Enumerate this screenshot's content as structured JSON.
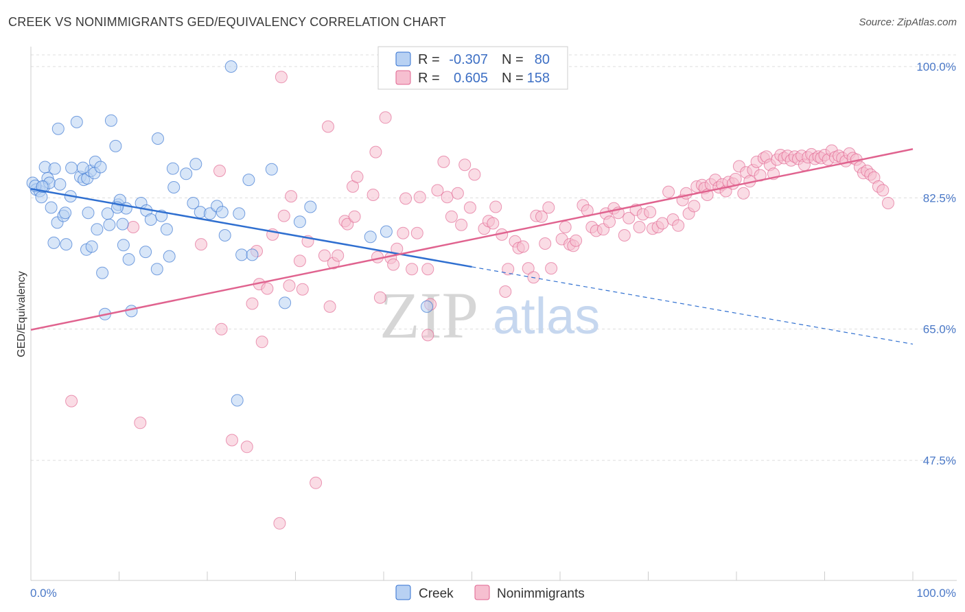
{
  "header": {
    "title": "CREEK VS NONIMMIGRANTS GED/EQUIVALENCY CORRELATION CHART",
    "source": "Source: ZipAtlas.com"
  },
  "watermark": {
    "zip": "ZIP",
    "atlas": "atlas"
  },
  "colors": {
    "creek": "#2f6fd0",
    "creek_fill": "#b8d1f3",
    "nonimm": "#e0638f",
    "nonimm_fill": "#f6bfd0",
    "grid": "#dddddd",
    "tick_label": "#4a78c7"
  },
  "legend": {
    "rows": [
      {
        "r_label": "R =",
        "r_value": "-0.307",
        "n_label": "N =",
        "n_value": "80"
      },
      {
        "r_label": "R =",
        "r_value": "0.605",
        "n_label": "N =",
        "n_value": "158"
      }
    ]
  },
  "bottom_legend": {
    "creek": "Creek",
    "nonimm": "Nonimmigrants"
  },
  "chart_data": {
    "type": "scatter",
    "title": "CREEK VS NONIMMIGRANTS GED/EQUIVALENCY CORRELATION CHART",
    "xlabel": "",
    "ylabel": "GED/Equivalency",
    "xlim": [
      0,
      100
    ],
    "ylim": [
      30,
      101.5
    ],
    "x_tick_labels": [
      "0.0%",
      "100.0%"
    ],
    "y_ticks": [
      47.5,
      65.0,
      82.5,
      100.0
    ],
    "y_tick_labels": [
      "47.5%",
      "65.0%",
      "82.5%",
      "100.0%"
    ],
    "grid": "horizontal dashed",
    "legend_position": "top-center",
    "series": [
      {
        "name": "Creek",
        "r": -0.307,
        "n": 80,
        "trend": {
          "x": [
            0,
            50
          ],
          "y": [
            83.7,
            73.3
          ],
          "dashed_extension": {
            "x": [
              50,
              100
            ],
            "y": [
              73.3,
              63.0
            ]
          }
        },
        "points": [
          [
            0.2,
            84.5
          ],
          [
            0.6,
            83.6
          ],
          [
            1.0,
            83.4
          ],
          [
            1.2,
            82.6
          ],
          [
            1.5,
            84.0
          ],
          [
            1.6,
            86.6
          ],
          [
            1.9,
            85.1
          ],
          [
            2.1,
            84.5
          ],
          [
            2.3,
            81.2
          ],
          [
            2.7,
            86.4
          ],
          [
            2.6,
            76.5
          ],
          [
            3.0,
            79.2
          ],
          [
            3.1,
            91.7
          ],
          [
            3.3,
            84.3
          ],
          [
            3.7,
            80.1
          ],
          [
            3.9,
            80.5
          ],
          [
            4.0,
            76.3
          ],
          [
            4.5,
            82.7
          ],
          [
            4.6,
            86.5
          ],
          [
            5.2,
            92.6
          ],
          [
            5.6,
            85.3
          ],
          [
            6.0,
            84.9
          ],
          [
            6.3,
            75.6
          ],
          [
            6.4,
            85.1
          ],
          [
            6.5,
            80.5
          ],
          [
            6.8,
            86.1
          ],
          [
            6.9,
            76.0
          ],
          [
            7.2,
            85.8
          ],
          [
            7.3,
            87.3
          ],
          [
            7.5,
            78.3
          ],
          [
            7.9,
            86.6
          ],
          [
            8.1,
            72.5
          ],
          [
            8.4,
            67.0
          ],
          [
            8.7,
            80.4
          ],
          [
            8.9,
            78.9
          ],
          [
            9.1,
            92.8
          ],
          [
            9.6,
            89.4
          ],
          [
            9.9,
            81.6
          ],
          [
            10.1,
            82.2
          ],
          [
            10.4,
            79.0
          ],
          [
            10.5,
            76.2
          ],
          [
            10.8,
            81.1
          ],
          [
            11.1,
            74.3
          ],
          [
            11.4,
            67.4
          ],
          [
            12.5,
            81.8
          ],
          [
            13.0,
            75.3
          ],
          [
            13.1,
            80.8
          ],
          [
            13.6,
            79.6
          ],
          [
            14.3,
            73.0
          ],
          [
            14.4,
            90.4
          ],
          [
            14.8,
            80.1
          ],
          [
            15.4,
            78.3
          ],
          [
            15.7,
            74.7
          ],
          [
            16.1,
            86.4
          ],
          [
            16.2,
            83.9
          ],
          [
            17.6,
            85.7
          ],
          [
            18.4,
            81.8
          ],
          [
            18.7,
            87.0
          ],
          [
            19.2,
            80.6
          ],
          [
            20.3,
            80.4
          ],
          [
            21.1,
            81.4
          ],
          [
            21.7,
            80.6
          ],
          [
            22.0,
            77.5
          ],
          [
            22.7,
            100.0
          ],
          [
            23.4,
            55.5
          ],
          [
            23.6,
            80.4
          ],
          [
            23.9,
            74.9
          ],
          [
            24.7,
            84.9
          ],
          [
            25.1,
            74.9
          ],
          [
            27.3,
            86.3
          ],
          [
            28.8,
            68.5
          ],
          [
            30.5,
            79.3
          ],
          [
            31.7,
            81.3
          ],
          [
            38.5,
            77.3
          ],
          [
            40.3,
            78.0
          ],
          [
            44.9,
            68.0
          ],
          [
            0.5,
            84.1
          ],
          [
            1.3,
            84.0
          ],
          [
            5.9,
            86.5
          ],
          [
            9.8,
            81.2
          ]
        ]
      },
      {
        "name": "Nonimmigrants",
        "r": 0.605,
        "n": 158,
        "trend": {
          "x": [
            0,
            100
          ],
          "y": [
            64.9,
            89.0
          ]
        },
        "points": [
          [
            4.6,
            55.4
          ],
          [
            11.6,
            78.6
          ],
          [
            12.4,
            52.5
          ],
          [
            19.3,
            76.3
          ],
          [
            21.4,
            86.1
          ],
          [
            21.6,
            65.0
          ],
          [
            22.8,
            50.2
          ],
          [
            24.5,
            49.3
          ],
          [
            25.1,
            68.4
          ],
          [
            25.6,
            75.4
          ],
          [
            25.9,
            71.0
          ],
          [
            26.2,
            63.3
          ],
          [
            26.8,
            70.4
          ],
          [
            27.4,
            77.6
          ],
          [
            28.2,
            39.1
          ],
          [
            28.4,
            98.6
          ],
          [
            28.7,
            80.1
          ],
          [
            29.3,
            70.8
          ],
          [
            29.5,
            82.7
          ],
          [
            30.5,
            74.1
          ],
          [
            30.8,
            70.3
          ],
          [
            31.4,
            76.7
          ],
          [
            32.3,
            44.5
          ],
          [
            33.3,
            74.8
          ],
          [
            33.7,
            92.0
          ],
          [
            33.9,
            68.0
          ],
          [
            34.3,
            73.8
          ],
          [
            34.8,
            74.8
          ],
          [
            35.6,
            79.4
          ],
          [
            35.9,
            79.0
          ],
          [
            36.5,
            84.0
          ],
          [
            36.7,
            80.0
          ],
          [
            37.0,
            85.3
          ],
          [
            38.8,
            82.9
          ],
          [
            39.1,
            88.6
          ],
          [
            39.3,
            74.6
          ],
          [
            39.6,
            69.2
          ],
          [
            40.2,
            93.2
          ],
          [
            40.8,
            74.5
          ],
          [
            41.1,
            73.6
          ],
          [
            41.5,
            75.7
          ],
          [
            42.2,
            77.8
          ],
          [
            42.5,
            82.4
          ],
          [
            43.2,
            73.0
          ],
          [
            43.8,
            77.8
          ],
          [
            44.1,
            82.6
          ],
          [
            45.0,
            73.0
          ],
          [
            45.0,
            64.2
          ],
          [
            45.3,
            68.3
          ],
          [
            46.1,
            83.5
          ],
          [
            46.8,
            87.3
          ],
          [
            47.2,
            82.6
          ],
          [
            47.7,
            80.0
          ],
          [
            48.4,
            83.1
          ],
          [
            48.8,
            78.9
          ],
          [
            49.2,
            86.9
          ],
          [
            49.8,
            81.2
          ],
          [
            50.3,
            85.6
          ],
          [
            51.4,
            78.4
          ],
          [
            51.9,
            79.4
          ],
          [
            52.4,
            79.1
          ],
          [
            52.7,
            81.3
          ],
          [
            53.4,
            77.6
          ],
          [
            53.8,
            70.0
          ],
          [
            54.1,
            73.0
          ],
          [
            54.9,
            76.7
          ],
          [
            55.3,
            75.8
          ],
          [
            55.8,
            76.0
          ],
          [
            56.4,
            73.1
          ],
          [
            57.0,
            71.9
          ],
          [
            57.3,
            80.1
          ],
          [
            57.9,
            80.0
          ],
          [
            58.3,
            76.4
          ],
          [
            58.7,
            81.2
          ],
          [
            59.0,
            73.1
          ],
          [
            60.2,
            77.0
          ],
          [
            60.6,
            78.6
          ],
          [
            61.1,
            76.3
          ],
          [
            61.5,
            76.1
          ],
          [
            61.8,
            76.8
          ],
          [
            62.6,
            81.5
          ],
          [
            63.1,
            80.8
          ],
          [
            63.6,
            78.6
          ],
          [
            64.1,
            78.1
          ],
          [
            64.9,
            78.3
          ],
          [
            65.2,
            80.4
          ],
          [
            65.6,
            79.3
          ],
          [
            66.1,
            81.1
          ],
          [
            66.6,
            80.5
          ],
          [
            67.3,
            77.5
          ],
          [
            67.8,
            79.8
          ],
          [
            68.6,
            80.9
          ],
          [
            69.0,
            78.6
          ],
          [
            69.4,
            80.3
          ],
          [
            70.2,
            80.6
          ],
          [
            70.5,
            78.4
          ],
          [
            71.1,
            78.6
          ],
          [
            71.6,
            79.1
          ],
          [
            72.3,
            83.3
          ],
          [
            72.8,
            79.6
          ],
          [
            73.4,
            78.8
          ],
          [
            73.9,
            82.2
          ],
          [
            74.3,
            83.1
          ],
          [
            74.6,
            80.4
          ],
          [
            75.2,
            81.4
          ],
          [
            75.5,
            84.0
          ],
          [
            76.1,
            84.2
          ],
          [
            76.4,
            83.8
          ],
          [
            76.7,
            82.9
          ],
          [
            77.1,
            84.3
          ],
          [
            77.6,
            84.9
          ],
          [
            78.0,
            83.9
          ],
          [
            78.4,
            84.3
          ],
          [
            78.8,
            83.4
          ],
          [
            79.1,
            84.6
          ],
          [
            79.6,
            84.4
          ],
          [
            79.9,
            85.0
          ],
          [
            80.3,
            86.7
          ],
          [
            80.8,
            83.1
          ],
          [
            81.1,
            85.9
          ],
          [
            81.5,
            84.7
          ],
          [
            81.9,
            86.2
          ],
          [
            82.3,
            87.3
          ],
          [
            82.7,
            85.5
          ],
          [
            83.1,
            87.8
          ],
          [
            83.4,
            88.0
          ],
          [
            83.8,
            86.9
          ],
          [
            84.2,
            85.7
          ],
          [
            84.6,
            87.6
          ],
          [
            85.0,
            88.2
          ],
          [
            85.4,
            87.8
          ],
          [
            85.8,
            88.1
          ],
          [
            86.2,
            87.5
          ],
          [
            86.6,
            88.0
          ],
          [
            87.0,
            87.7
          ],
          [
            87.4,
            88.1
          ],
          [
            87.7,
            86.9
          ],
          [
            88.1,
            87.9
          ],
          [
            88.5,
            88.3
          ],
          [
            88.9,
            87.7
          ],
          [
            89.3,
            88.0
          ],
          [
            89.6,
            87.8
          ],
          [
            90.0,
            88.2
          ],
          [
            90.4,
            87.6
          ],
          [
            90.8,
            88.8
          ],
          [
            91.2,
            87.9
          ],
          [
            91.6,
            88.1
          ],
          [
            92.0,
            87.8
          ],
          [
            92.4,
            87.4
          ],
          [
            92.8,
            88.4
          ],
          [
            93.2,
            87.8
          ],
          [
            93.6,
            87.6
          ],
          [
            94.0,
            86.6
          ],
          [
            94.4,
            85.8
          ],
          [
            94.8,
            86.1
          ],
          [
            95.2,
            85.6
          ],
          [
            95.6,
            85.2
          ],
          [
            96.1,
            84.0
          ],
          [
            96.6,
            83.5
          ],
          [
            97.2,
            81.8
          ]
        ]
      }
    ]
  }
}
